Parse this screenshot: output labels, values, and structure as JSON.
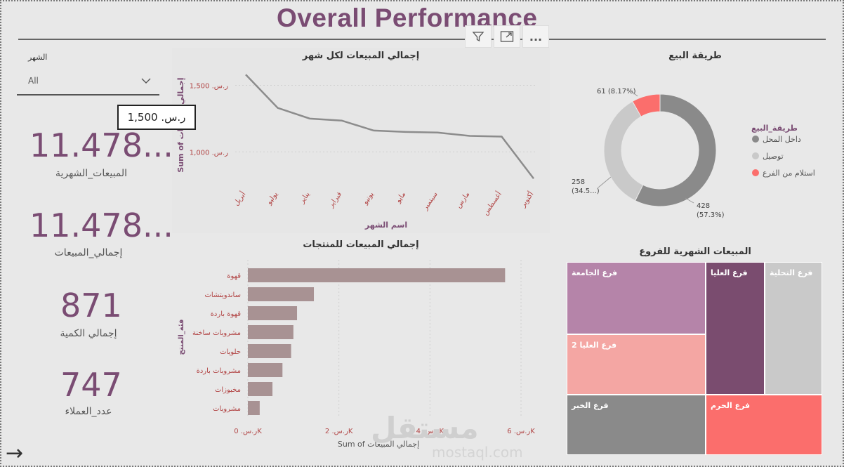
{
  "page_title": "Overall Performance",
  "visual_tools": {
    "filter_icon": "filter-icon",
    "focus_icon": "focus-mode-icon",
    "more_icon": "more-options-icon",
    "more_label": "..."
  },
  "slicer": {
    "label": "الشهر",
    "value": "All",
    "icon": "chevron-down-icon"
  },
  "tooltip": {
    "text": "ر.س. 1,500"
  },
  "kpis": [
    {
      "value": "11.478...",
      "label": "المبيعات_الشهرية"
    },
    {
      "value": "11.478...",
      "label": "إجمالي_المبيعات"
    },
    {
      "value": "871",
      "label": "إجمالي الكمية"
    },
    {
      "value": "747",
      "label": "عدد_العملاء"
    }
  ],
  "line_chart_title": "إجمالي المبيعات لكل شهر",
  "bar_chart_title": "إجمالي المبيعات للمنتجات",
  "donut_title": "طريقة البيع",
  "treemap_title": "المبيعات الشهرية للفروع",
  "treemap": {
    "items": [
      {
        "label": "فرع الجامعة",
        "color": "#b584a9"
      },
      {
        "label": "فرع العليا 2",
        "color": "#f4a6a3"
      },
      {
        "label": "فرع الخبر",
        "color": "#8a8a8a"
      },
      {
        "label": "فرع العليا",
        "color": "#7a4c6f"
      },
      {
        "label": "فرع التحلية",
        "color": "#c9c9c9"
      },
      {
        "label": "فرع الحرم",
        "color": "#fb6e6c"
      }
    ]
  },
  "watermark": {
    "main": "مستقل",
    "sub": "mostaql.com"
  },
  "nav": {
    "arrow_icon": "arrow-right-icon",
    "arrow_glyph": "→"
  },
  "chart_data": [
    {
      "type": "line",
      "title": "إجمالي المبيعات لكل شهر",
      "xlabel": "اسم الشهر",
      "ylabel": "Sum of إجمالي المبيعات",
      "categories": [
        "أبريل",
        "يوليو",
        "يناير",
        "فبراير",
        "يونيو",
        "مايو",
        "سبتمبر",
        "مارس",
        "أغسطس",
        "أكتوبر"
      ],
      "values": [
        1580,
        1330,
        1250,
        1235,
        1160,
        1150,
        1145,
        1120,
        1115,
        800
      ],
      "yticks": [
        {
          "value": 1000,
          "label": "ر.س. 1,000"
        },
        {
          "value": 1500,
          "label": "ر.س. 1,500"
        }
      ],
      "ylim": [
        780,
        1650
      ],
      "color": "#8c8c8c"
    },
    {
      "type": "bar",
      "orientation": "horizontal",
      "title": "إجمالي المبيعات للمنتجات",
      "xlabel": "Sum of إجمالي المبيعات",
      "ylabel": "فئة_المنتج",
      "categories": [
        "قهوة",
        "ساندويتشات",
        "قهوة باردة",
        "مشروبات ساخنة",
        "حلويات",
        "مشروبات باردة",
        "مخبوزات",
        "مشروبات"
      ],
      "values": [
        5650,
        1450,
        1080,
        1000,
        950,
        760,
        540,
        260
      ],
      "xticks": [
        {
          "value": 0,
          "label": "ر.س. 0K"
        },
        {
          "value": 2000,
          "label": "ر.س. 2K"
        },
        {
          "value": 4000,
          "label": "ر.س. 4K"
        },
        {
          "value": 6000,
          "label": "ر.س. 6K"
        }
      ],
      "xlim": [
        0,
        6200
      ],
      "color": "#a89293"
    },
    {
      "type": "pie",
      "title": "طريقة البيع",
      "legend_title": "طريقة_البيع",
      "legend_position": "right",
      "slices": [
        {
          "name": "داخل المحل",
          "value": 428,
          "label": "428\n(57.3%)",
          "color": "#8a8a8a"
        },
        {
          "name": "توصيل",
          "value": 258,
          "label": "258\n(34.5...)",
          "color": "#c9c9c9"
        },
        {
          "name": "استلام من الفرع",
          "value": 61,
          "label": "61 (8.17%)",
          "color": "#fb6e6c"
        }
      ]
    }
  ]
}
